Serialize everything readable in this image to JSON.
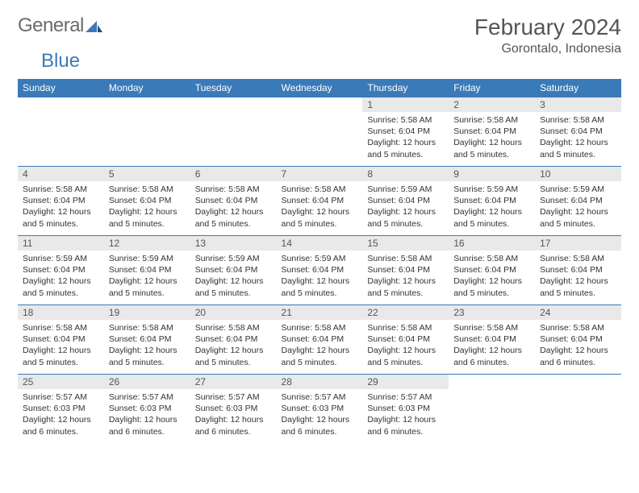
{
  "brand": {
    "word1": "General",
    "word2": "Blue"
  },
  "title": "February 2024",
  "location": "Gorontalo, Indonesia",
  "colors": {
    "header_bg": "#3a7ab8",
    "header_fg": "#ffffff",
    "daynum_bg": "#e9e9e9",
    "row_border": "#3a7ab8",
    "text": "#333333",
    "logo_gray": "#6b6b6b",
    "logo_blue": "#3a7ab8"
  },
  "layout": {
    "cols": 7,
    "rows": 5
  },
  "weekdays": [
    "Sunday",
    "Monday",
    "Tuesday",
    "Wednesday",
    "Thursday",
    "Friday",
    "Saturday"
  ],
  "weeks": [
    [
      null,
      null,
      null,
      null,
      {
        "d": "1",
        "sr": "Sunrise: 5:58 AM",
        "ss": "Sunset: 6:04 PM",
        "dl": "Daylight: 12 hours and 5 minutes."
      },
      {
        "d": "2",
        "sr": "Sunrise: 5:58 AM",
        "ss": "Sunset: 6:04 PM",
        "dl": "Daylight: 12 hours and 5 minutes."
      },
      {
        "d": "3",
        "sr": "Sunrise: 5:58 AM",
        "ss": "Sunset: 6:04 PM",
        "dl": "Daylight: 12 hours and 5 minutes."
      }
    ],
    [
      {
        "d": "4",
        "sr": "Sunrise: 5:58 AM",
        "ss": "Sunset: 6:04 PM",
        "dl": "Daylight: 12 hours and 5 minutes."
      },
      {
        "d": "5",
        "sr": "Sunrise: 5:58 AM",
        "ss": "Sunset: 6:04 PM",
        "dl": "Daylight: 12 hours and 5 minutes."
      },
      {
        "d": "6",
        "sr": "Sunrise: 5:58 AM",
        "ss": "Sunset: 6:04 PM",
        "dl": "Daylight: 12 hours and 5 minutes."
      },
      {
        "d": "7",
        "sr": "Sunrise: 5:58 AM",
        "ss": "Sunset: 6:04 PM",
        "dl": "Daylight: 12 hours and 5 minutes."
      },
      {
        "d": "8",
        "sr": "Sunrise: 5:59 AM",
        "ss": "Sunset: 6:04 PM",
        "dl": "Daylight: 12 hours and 5 minutes."
      },
      {
        "d": "9",
        "sr": "Sunrise: 5:59 AM",
        "ss": "Sunset: 6:04 PM",
        "dl": "Daylight: 12 hours and 5 minutes."
      },
      {
        "d": "10",
        "sr": "Sunrise: 5:59 AM",
        "ss": "Sunset: 6:04 PM",
        "dl": "Daylight: 12 hours and 5 minutes."
      }
    ],
    [
      {
        "d": "11",
        "sr": "Sunrise: 5:59 AM",
        "ss": "Sunset: 6:04 PM",
        "dl": "Daylight: 12 hours and 5 minutes."
      },
      {
        "d": "12",
        "sr": "Sunrise: 5:59 AM",
        "ss": "Sunset: 6:04 PM",
        "dl": "Daylight: 12 hours and 5 minutes."
      },
      {
        "d": "13",
        "sr": "Sunrise: 5:59 AM",
        "ss": "Sunset: 6:04 PM",
        "dl": "Daylight: 12 hours and 5 minutes."
      },
      {
        "d": "14",
        "sr": "Sunrise: 5:59 AM",
        "ss": "Sunset: 6:04 PM",
        "dl": "Daylight: 12 hours and 5 minutes."
      },
      {
        "d": "15",
        "sr": "Sunrise: 5:58 AM",
        "ss": "Sunset: 6:04 PM",
        "dl": "Daylight: 12 hours and 5 minutes."
      },
      {
        "d": "16",
        "sr": "Sunrise: 5:58 AM",
        "ss": "Sunset: 6:04 PM",
        "dl": "Daylight: 12 hours and 5 minutes."
      },
      {
        "d": "17",
        "sr": "Sunrise: 5:58 AM",
        "ss": "Sunset: 6:04 PM",
        "dl": "Daylight: 12 hours and 5 minutes."
      }
    ],
    [
      {
        "d": "18",
        "sr": "Sunrise: 5:58 AM",
        "ss": "Sunset: 6:04 PM",
        "dl": "Daylight: 12 hours and 5 minutes."
      },
      {
        "d": "19",
        "sr": "Sunrise: 5:58 AM",
        "ss": "Sunset: 6:04 PM",
        "dl": "Daylight: 12 hours and 5 minutes."
      },
      {
        "d": "20",
        "sr": "Sunrise: 5:58 AM",
        "ss": "Sunset: 6:04 PM",
        "dl": "Daylight: 12 hours and 5 minutes."
      },
      {
        "d": "21",
        "sr": "Sunrise: 5:58 AM",
        "ss": "Sunset: 6:04 PM",
        "dl": "Daylight: 12 hours and 5 minutes."
      },
      {
        "d": "22",
        "sr": "Sunrise: 5:58 AM",
        "ss": "Sunset: 6:04 PM",
        "dl": "Daylight: 12 hours and 5 minutes."
      },
      {
        "d": "23",
        "sr": "Sunrise: 5:58 AM",
        "ss": "Sunset: 6:04 PM",
        "dl": "Daylight: 12 hours and 6 minutes."
      },
      {
        "d": "24",
        "sr": "Sunrise: 5:58 AM",
        "ss": "Sunset: 6:04 PM",
        "dl": "Daylight: 12 hours and 6 minutes."
      }
    ],
    [
      {
        "d": "25",
        "sr": "Sunrise: 5:57 AM",
        "ss": "Sunset: 6:03 PM",
        "dl": "Daylight: 12 hours and 6 minutes."
      },
      {
        "d": "26",
        "sr": "Sunrise: 5:57 AM",
        "ss": "Sunset: 6:03 PM",
        "dl": "Daylight: 12 hours and 6 minutes."
      },
      {
        "d": "27",
        "sr": "Sunrise: 5:57 AM",
        "ss": "Sunset: 6:03 PM",
        "dl": "Daylight: 12 hours and 6 minutes."
      },
      {
        "d": "28",
        "sr": "Sunrise: 5:57 AM",
        "ss": "Sunset: 6:03 PM",
        "dl": "Daylight: 12 hours and 6 minutes."
      },
      {
        "d": "29",
        "sr": "Sunrise: 5:57 AM",
        "ss": "Sunset: 6:03 PM",
        "dl": "Daylight: 12 hours and 6 minutes."
      },
      null,
      null
    ]
  ]
}
